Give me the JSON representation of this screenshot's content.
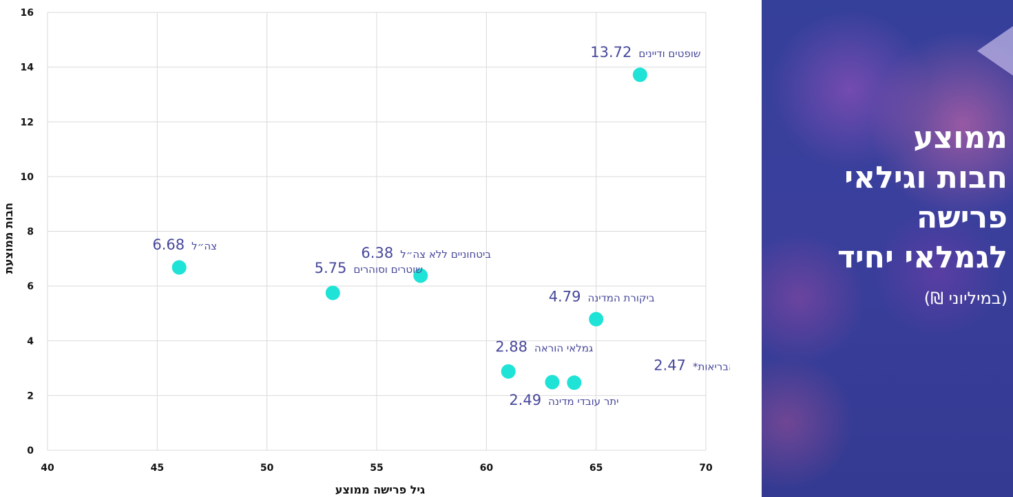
{
  "panel": {
    "title_lines": [
      "ממוצע",
      "חבות וגילאי",
      "פרישה",
      "לגמלאי יחיד"
    ],
    "subtitle": "(במיליוני ₪)",
    "background_color": "#3a3f9c",
    "title_color": "#ffffff"
  },
  "chart_data": {
    "type": "scatter",
    "xlabel": "גיל פרישה ממוצע",
    "ylabel": "חבות ממוצעת",
    "xlim": [
      40,
      70
    ],
    "ylim": [
      0,
      16
    ],
    "x_ticks": [
      "40",
      "45",
      "50",
      "55",
      "60",
      "65",
      "70"
    ],
    "y_ticks": [
      "0",
      "2",
      "4",
      "6",
      "8",
      "10",
      "12",
      "14",
      "16"
    ],
    "grid": true,
    "point_color": "#1ee3d6",
    "label_color": "#46479a",
    "points": [
      {
        "name": "שופטים ודיינים",
        "value_label": "13.72",
        "x": 67,
        "y": 13.72,
        "label_pos": "above"
      },
      {
        "name": "צה״ל",
        "value_label": "6.68",
        "x": 46,
        "y": 6.68,
        "label_pos": "above"
      },
      {
        "name": "ביטחוניים ללא צה״ל",
        "value_label": "6.38",
        "x": 57,
        "y": 6.38,
        "label_pos": "above"
      },
      {
        "name": "שוטרים וסוהרים",
        "value_label": "5.75",
        "x": 53,
        "y": 5.75,
        "label_pos": "above-left"
      },
      {
        "name": "ביקורת המדינה",
        "value_label": "4.79",
        "x": 65,
        "y": 4.79,
        "label_pos": "above"
      },
      {
        "name": "גמלאי הוראה",
        "value_label": "2.88",
        "x": 61,
        "y": 2.88,
        "label_pos": "above-left"
      },
      {
        "name": "מערכת הבריאות*",
        "value_label": "2.47",
        "x": 64,
        "y": 2.47,
        "label_pos": "right"
      },
      {
        "name": "יתר עובדי מדינה",
        "value_label": "2.49",
        "x": 63,
        "y": 2.49,
        "label_pos": "below"
      }
    ]
  }
}
